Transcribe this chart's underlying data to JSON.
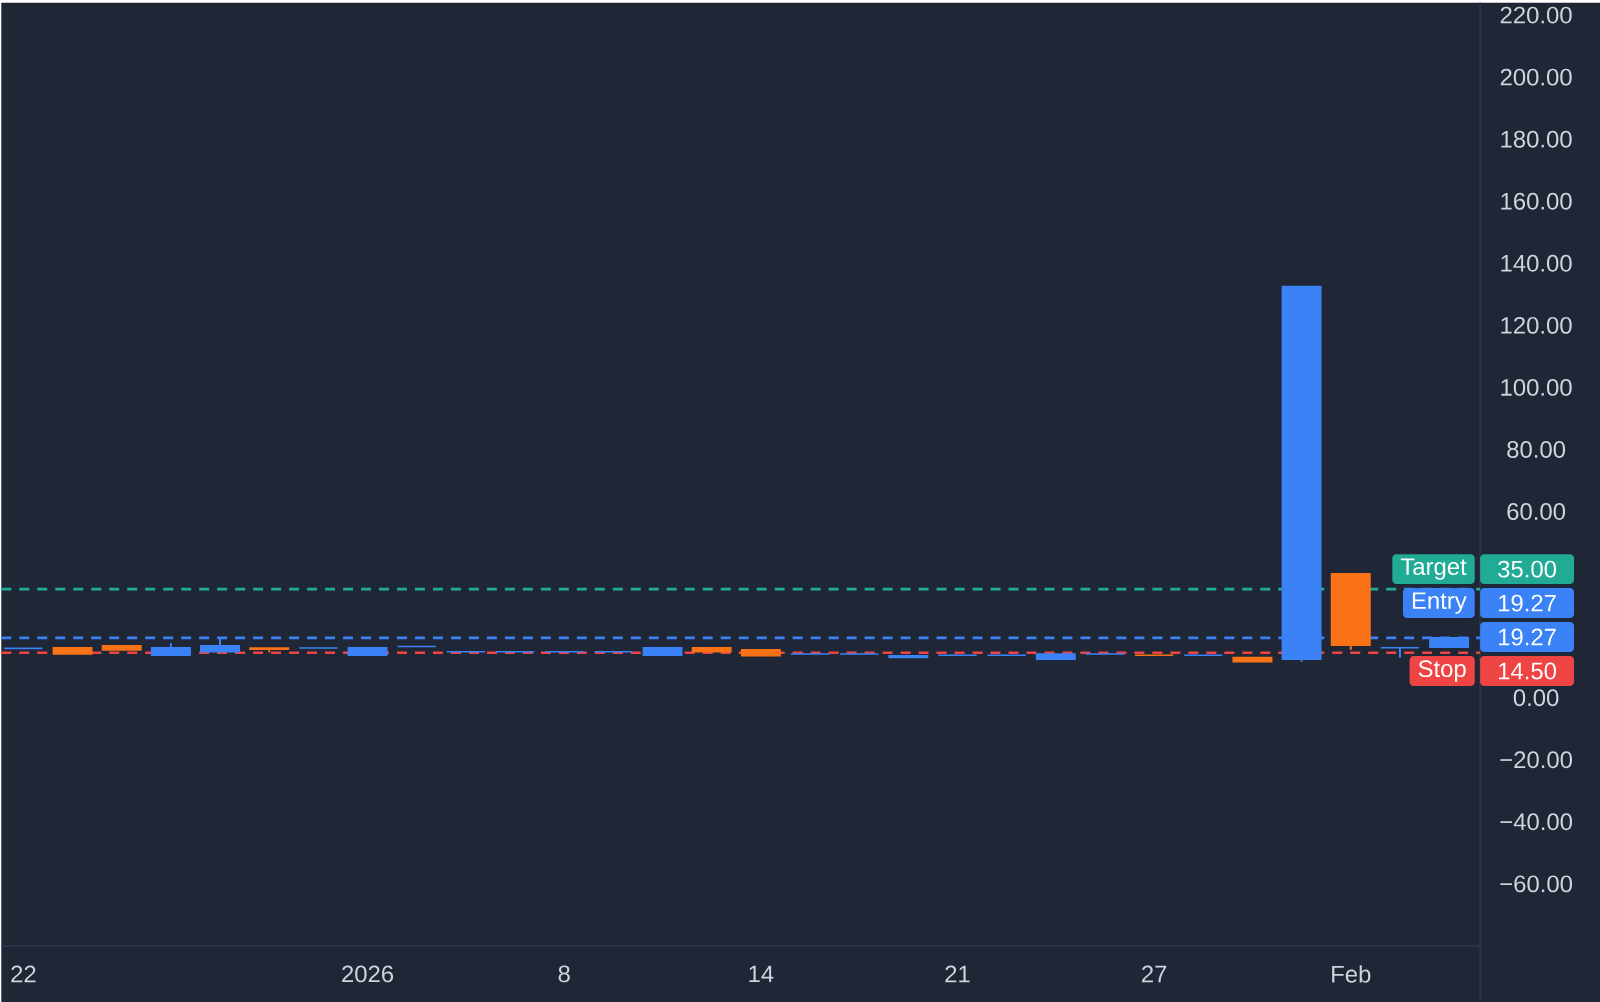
{
  "chart_data": {
    "type": "candlestick",
    "categories": [
      "22",
      null,
      null,
      null,
      null,
      null,
      null,
      "2026",
      null,
      null,
      null,
      "8",
      null,
      null,
      null,
      "14",
      null,
      null,
      null,
      "21",
      null,
      null,
      null,
      "27",
      null,
      null,
      null,
      "Feb",
      null,
      null
    ],
    "ohlc": [
      [
        15.9,
        15.9,
        15.9,
        15.9
      ],
      [
        16.1,
        16.1,
        14.1,
        14.1
      ],
      [
        16.7,
        16.7,
        15.4,
        15.4
      ],
      [
        13.7,
        17.6,
        13.7,
        16.1
      ],
      [
        14.8,
        19.1,
        14.8,
        16.7
      ],
      [
        16.0,
        16.0,
        14.6,
        15.6
      ],
      [
        16.0,
        16.0,
        16.0,
        16.0
      ],
      [
        13.7,
        16.1,
        13.7,
        16.1
      ],
      [
        16.5,
        16.5,
        16.5,
        16.5
      ],
      [
        14.8,
        14.8,
        14.8,
        14.8
      ],
      [
        14.8,
        14.8,
        14.8,
        14.8
      ],
      [
        14.8,
        14.8,
        14.8,
        14.8
      ],
      [
        14.8,
        14.8,
        14.8,
        14.8
      ],
      [
        13.7,
        16.1,
        13.7,
        16.1
      ],
      [
        16.1,
        16.1,
        14.8,
        14.8
      ],
      [
        15.4,
        15.4,
        13.5,
        13.5
      ],
      [
        14.1,
        14.1,
        14.1,
        14.1
      ],
      [
        14.1,
        14.1,
        14.1,
        14.1
      ],
      [
        13.0,
        13.5,
        13.0,
        13.5
      ],
      [
        13.7,
        13.7,
        13.7,
        13.7
      ],
      [
        13.7,
        13.7,
        13.7,
        13.7
      ],
      [
        12.4,
        14.1,
        12.4,
        14.1
      ],
      [
        14.1,
        14.1,
        14.1,
        14.1
      ],
      [
        13.7,
        13.7,
        13.7,
        13.7
      ],
      [
        13.7,
        13.7,
        13.7,
        13.7
      ],
      [
        12.9,
        12.9,
        11.6,
        11.6
      ],
      [
        12.4,
        132.5,
        11.6,
        132.5
      ],
      [
        39.9,
        39.9,
        15.4,
        16.9
      ],
      [
        16.1,
        16.1,
        12.9,
        16.1
      ],
      [
        16.3,
        19.27,
        16.3,
        19.27
      ]
    ],
    "colors": [
      "#3b82f6",
      "#f97316",
      "#f97316",
      "#3b82f6",
      "#3b82f6",
      "#f97316",
      "#3b82f6",
      "#3b82f6",
      "#3b82f6",
      "#3b82f6",
      "#3b82f6",
      "#3b82f6",
      "#3b82f6",
      "#3b82f6",
      "#f97316",
      "#f97316",
      "#3b82f6",
      "#3b82f6",
      "#3b82f6",
      "#3b82f6",
      "#3b82f6",
      "#3b82f6",
      "#3b82f6",
      "#f97316",
      "#3b82f6",
      "#f97316",
      "#3b82f6",
      "#f97316",
      "#3b82f6",
      "#3b82f6"
    ],
    "ylim": [
      -80,
      224
    ],
    "yticks": [
      {
        "value": -60,
        "label": "−60.00"
      },
      {
        "value": -40,
        "label": "−40.00"
      },
      {
        "value": -20,
        "label": "−20.00"
      },
      {
        "value": 0,
        "label": "0.00"
      },
      {
        "value": 60,
        "label": "60.00"
      },
      {
        "value": 80,
        "label": "80.00"
      },
      {
        "value": 100,
        "label": "100.00"
      },
      {
        "value": 120,
        "label": "120.00"
      },
      {
        "value": 140,
        "label": "140.00"
      },
      {
        "value": 160,
        "label": "160.00"
      },
      {
        "value": 180,
        "label": "180.00"
      },
      {
        "value": 200,
        "label": "200.00"
      },
      {
        "value": 220,
        "label": "220.00"
      }
    ],
    "ref_lines": [
      {
        "axis": "y",
        "value": 35,
        "label": "Target",
        "color": "#22ab94",
        "line_style": "dashed"
      },
      {
        "axis": "y",
        "value": 19.27,
        "label": "Entry",
        "color": "#3b82f6",
        "line_style": "dashed"
      },
      {
        "axis": "y",
        "value": 14.5,
        "label": "Stop",
        "color": "#ef4444",
        "line_style": "dashed"
      }
    ],
    "annotations": [
      "35.00",
      "19.27",
      "19.27",
      "14.50"
    ],
    "grid": false
  }
}
